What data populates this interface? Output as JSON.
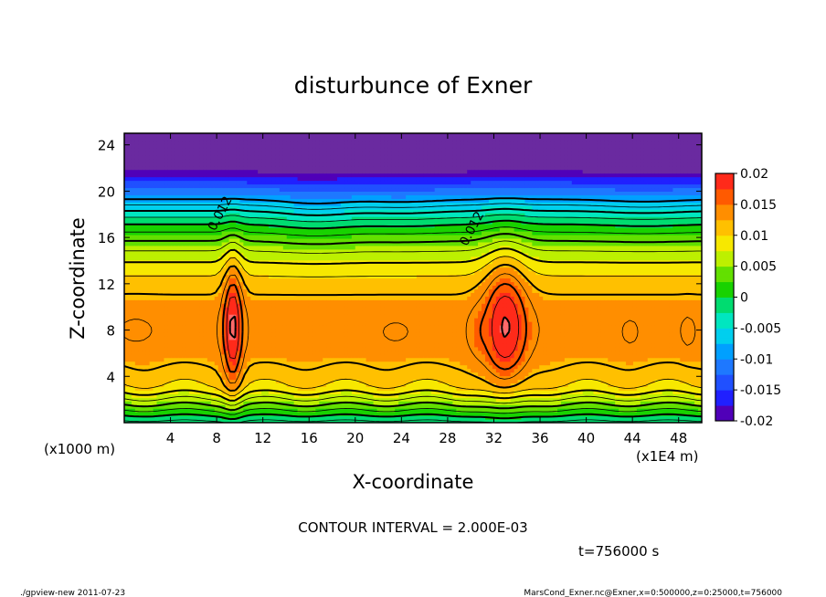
{
  "chart_data": {
    "type": "heatmap",
    "title": "disturbunce of Exner",
    "xlabel": "X-coordinate",
    "ylabel": "Z-coordinate",
    "x_unit_note": "(x1000 m)",
    "x_unit_note2": "(x1E4 m)",
    "xlim": [
      0,
      50
    ],
    "ylim": [
      0,
      25
    ],
    "x_ticks": [
      4,
      8,
      12,
      16,
      20,
      24,
      28,
      32,
      36,
      40,
      44,
      48
    ],
    "y_ticks": [
      4,
      8,
      12,
      16,
      20,
      24
    ],
    "colorbar": {
      "vmin": -0.02,
      "vmax": 0.02,
      "tick_values": [
        0.02,
        0.015,
        0.01,
        0.005,
        0,
        -0.005,
        -0.01,
        -0.015,
        -0.02
      ],
      "tick_labels": [
        "0.02",
        "0.015",
        "0.01",
        "0.005",
        "0",
        "-0.005",
        "-0.01",
        "-0.015",
        "-0.02"
      ]
    },
    "contour_interval_label": "CONTOUR INTERVAL = 2.000E-03",
    "contour_labels": [
      {
        "text": "0.012",
        "x": 8.6,
        "z": 17.9
      },
      {
        "text": "0.012",
        "x": 30.4,
        "z": 16.6
      }
    ],
    "time_label": "t=756000 s"
  },
  "footer": {
    "left": "./gpview-new   2011-07-23",
    "right": "MarsCond_Exner.nc@Exner,x=0:500000,z=0:25000,t=756000"
  }
}
